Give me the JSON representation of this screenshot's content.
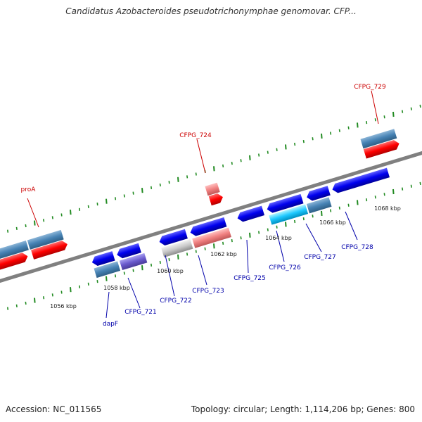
{
  "title": "Candidatus Azobacteroides pseudotrichonymphae genomovar. CFP...",
  "footer": {
    "accession": "Accession: NC_011565",
    "topology": "Topology: circular; Length: 1,114,206 bp; Genes: 800"
  },
  "colors": {
    "backbone": "#808080",
    "dots": "#228b22",
    "label_forward": "#cc0000",
    "label_reverse": "#0000aa"
  },
  "tick_labels": [
    "1056 kbp",
    "1058 kbp",
    "1060 kbp",
    "1062 kbp",
    "1064 kbp",
    "1066 kbp",
    "1068 kbp"
  ],
  "gene_labels": {
    "proA": "proA",
    "cfpg724": "CFPG_724",
    "cfpg729": "CFPG_729",
    "dapF": "dapF",
    "cfpg721": "CFPG_721",
    "cfpg722": "CFPG_722",
    "cfpg723": "CFPG_723",
    "cfpg725": "CFPG_725",
    "cfpg726": "CFPG_726",
    "cfpg727": "CFPG_727",
    "cfpg728": "CFPG_728"
  }
}
